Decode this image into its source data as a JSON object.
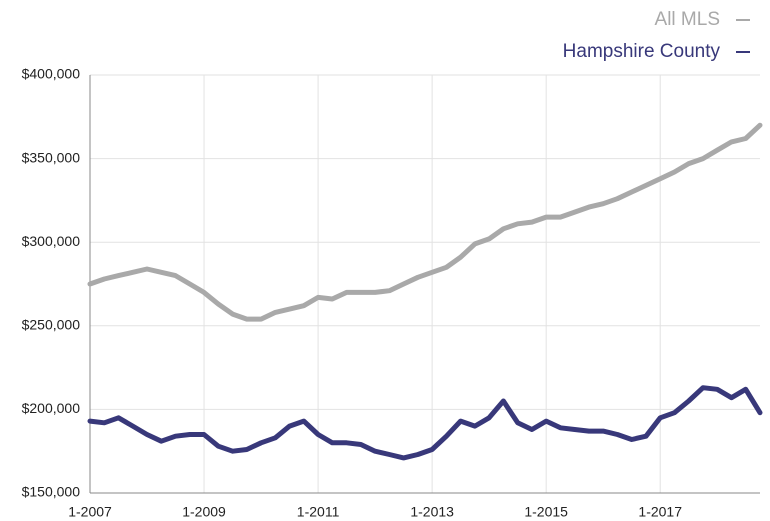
{
  "chart_data": {
    "type": "line",
    "x": [
      2007,
      2007.25,
      2007.5,
      2007.75,
      2008,
      2008.25,
      2008.5,
      2008.75,
      2009,
      2009.25,
      2009.5,
      2009.75,
      2010,
      2010.25,
      2010.5,
      2010.75,
      2011,
      2011.25,
      2011.5,
      2011.75,
      2012,
      2012.25,
      2012.5,
      2012.75,
      2013,
      2013.25,
      2013.5,
      2013.75,
      2014,
      2014.25,
      2014.5,
      2014.75,
      2015,
      2015.25,
      2015.5,
      2015.75,
      2016,
      2016.25,
      2016.5,
      2016.75,
      2017,
      2017.25,
      2017.5,
      2017.75,
      2018,
      2018.25,
      2018.5,
      2018.75
    ],
    "series": [
      {
        "name": "All MLS",
        "color": "#a9a9a9",
        "values": [
          275000,
          278000,
          280000,
          282000,
          284000,
          282000,
          280000,
          275000,
          270000,
          263000,
          257000,
          254000,
          254000,
          258000,
          260000,
          262000,
          267000,
          266000,
          270000,
          270000,
          270000,
          271000,
          275000,
          279000,
          282000,
          285000,
          291000,
          299000,
          302000,
          308000,
          311000,
          312000,
          315000,
          315000,
          318000,
          321000,
          323000,
          326000,
          330000,
          334000,
          338000,
          342000,
          347000,
          350000,
          355000,
          360000,
          362000,
          370000
        ]
      },
      {
        "name": "Hampshire County",
        "color": "#38387a",
        "values": [
          193000,
          192000,
          195000,
          190000,
          185000,
          181000,
          184000,
          185000,
          185000,
          178000,
          175000,
          176000,
          180000,
          183000,
          190000,
          193000,
          185000,
          180000,
          180000,
          179000,
          175000,
          173000,
          171000,
          173000,
          176000,
          184000,
          193000,
          190000,
          195000,
          205000,
          192000,
          188000,
          193000,
          189000,
          188000,
          187000,
          187000,
          185000,
          182000,
          184000,
          195000,
          198000,
          205000,
          213000,
          212000,
          207000,
          212000,
          198000
        ]
      }
    ],
    "xlim": [
      2007,
      2018.75
    ],
    "xticks": [
      {
        "value": 2007,
        "label": "1-2007"
      },
      {
        "value": 2009,
        "label": "1-2009"
      },
      {
        "value": 2011,
        "label": "1-2011"
      },
      {
        "value": 2013,
        "label": "1-2013"
      },
      {
        "value": 2015,
        "label": "1-2015"
      },
      {
        "value": 2017,
        "label": "1-2017"
      }
    ],
    "ylim": [
      150000,
      400000
    ],
    "yticks": [
      {
        "value": 150000,
        "label": "$150,000"
      },
      {
        "value": 200000,
        "label": "$200,000"
      },
      {
        "value": 250000,
        "label": "$250,000"
      },
      {
        "value": 300000,
        "label": "$300,000"
      },
      {
        "value": 350000,
        "label": "$350,000"
      },
      {
        "value": 400000,
        "label": "$400,000"
      }
    ],
    "grid": true
  }
}
